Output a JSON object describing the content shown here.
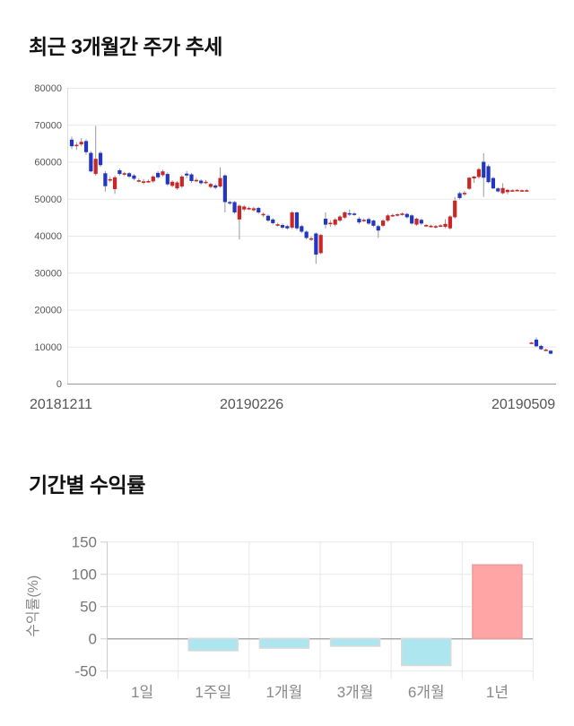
{
  "page": {
    "background": "#ffffff"
  },
  "price_section": {
    "title": "최근 3개월간 주가 추세",
    "x_axis_labels": [
      "20181211",
      "20190226",
      "20190509"
    ]
  },
  "returns_section": {
    "title": "기간별 수익률",
    "ylabel": "수익률(%)"
  },
  "chart_data": [
    {
      "type": "candlestick",
      "title": "최근 3개월간 주가 추세",
      "x_axis_labels": [
        "20181211",
        "20190226",
        "20190509"
      ],
      "y_ticks": [
        0,
        10000,
        20000,
        30000,
        40000,
        50000,
        60000,
        70000,
        80000
      ],
      "ylim": [
        0,
        80000
      ],
      "grid": true,
      "legend": "none",
      "colors": {
        "up": "#cc2525",
        "down": "#2236c4",
        "wick": "#999999",
        "grid": "#e8e8e8",
        "axis_line": "#999999",
        "side_axis": "#dddddd",
        "tick_text": "#555555"
      },
      "candles_ohlc": [
        [
          66000,
          66800,
          63500,
          64200
        ],
        [
          64300,
          65300,
          63200,
          64600
        ],
        [
          64700,
          66400,
          64200,
          65400
        ],
        [
          65600,
          66100,
          61900,
          62600
        ],
        [
          62400,
          62900,
          57100,
          57400
        ],
        [
          56700,
          69700,
          56200,
          60800
        ],
        [
          62400,
          62900,
          58600,
          59100
        ],
        [
          56900,
          57500,
          51900,
          53400
        ],
        [
          55100,
          55900,
          54400,
          55300
        ],
        [
          52600,
          56300,
          51300,
          55800
        ],
        [
          57700,
          58200,
          56300,
          56700
        ],
        [
          56500,
          57300,
          56100,
          56900
        ],
        [
          56900,
          57200,
          55600,
          56000
        ],
        [
          56300,
          56700,
          55000,
          55400
        ],
        [
          54900,
          55500,
          54400,
          55000
        ],
        [
          54500,
          55300,
          53900,
          54700
        ],
        [
          54700,
          55200,
          54300,
          54800
        ],
        [
          54700,
          56400,
          54300,
          56000
        ],
        [
          57000,
          57500,
          55400,
          55800
        ],
        [
          56400,
          57800,
          56000,
          57400
        ],
        [
          56700,
          57100,
          53500,
          53900
        ],
        [
          53500,
          55000,
          53100,
          54600
        ],
        [
          52800,
          54800,
          52400,
          54400
        ],
        [
          53300,
          56400,
          52900,
          56000
        ],
        [
          56800,
          57500,
          55600,
          56300
        ],
        [
          56600,
          57000,
          54300,
          54800
        ],
        [
          54900,
          55600,
          54500,
          55100
        ],
        [
          54900,
          55300,
          53800,
          54200
        ],
        [
          54500,
          55100,
          54000,
          54600
        ],
        [
          53200,
          54400,
          52800,
          54000
        ],
        [
          53600,
          54000,
          52600,
          53000
        ],
        [
          53300,
          58500,
          53000,
          55600
        ],
        [
          56300,
          56600,
          46300,
          49100
        ],
        [
          49100,
          49500,
          48300,
          48900
        ],
        [
          49100,
          49400,
          45900,
          46300
        ],
        [
          44400,
          48500,
          39000,
          48100
        ],
        [
          47100,
          48300,
          46600,
          47900
        ],
        [
          47300,
          47900,
          46900,
          47500
        ],
        [
          46900,
          47800,
          46500,
          47400
        ],
        [
          47500,
          47800,
          45900,
          46300
        ],
        [
          45600,
          46300,
          45000,
          45900
        ],
        [
          45400,
          45800,
          43700,
          44100
        ],
        [
          44400,
          44800,
          43000,
          43400
        ],
        [
          42900,
          43500,
          42500,
          43100
        ],
        [
          42900,
          43300,
          41800,
          42200
        ],
        [
          42600,
          43000,
          41600,
          42000
        ],
        [
          42200,
          46700,
          41800,
          46300
        ],
        [
          46300,
          46600,
          41500,
          42000
        ],
        [
          42600,
          43000,
          40700,
          41100
        ],
        [
          41100,
          41500,
          39000,
          39400
        ],
        [
          39100,
          39800,
          38600,
          39300
        ],
        [
          40600,
          40900,
          32400,
          34900
        ],
        [
          35300,
          40500,
          35000,
          40200
        ],
        [
          44600,
          46300,
          42000,
          43000
        ],
        [
          43200,
          44200,
          42400,
          43500
        ],
        [
          43000,
          44800,
          42600,
          44400
        ],
        [
          44100,
          45600,
          43700,
          45200
        ],
        [
          44900,
          46600,
          44500,
          46300
        ],
        [
          46100,
          47100,
          45300,
          45900
        ],
        [
          46000,
          46400,
          45400,
          45900
        ],
        [
          44600,
          45100,
          43200,
          43600
        ],
        [
          44100,
          44700,
          43700,
          44300
        ],
        [
          44500,
          44900,
          42900,
          43300
        ],
        [
          44100,
          44400,
          42300,
          42700
        ],
        [
          42600,
          43000,
          39400,
          41400
        ],
        [
          42700,
          44500,
          42300,
          44100
        ],
        [
          44100,
          45900,
          43700,
          45500
        ],
        [
          45500,
          46000,
          45100,
          45600
        ],
        [
          45700,
          46100,
          45200,
          45800
        ],
        [
          45900,
          46300,
          45400,
          46000
        ],
        [
          45900,
          46200,
          44600,
          45000
        ],
        [
          45500,
          45800,
          43000,
          43300
        ],
        [
          43000,
          44900,
          42700,
          44600
        ],
        [
          44300,
          44700,
          42900,
          43300
        ],
        [
          42800,
          43200,
          42400,
          42900
        ],
        [
          42600,
          43000,
          42200,
          42700
        ],
        [
          42400,
          42900,
          42000,
          42600
        ],
        [
          42700,
          43100,
          42300,
          42800
        ],
        [
          42400,
          44500,
          42000,
          43200
        ],
        [
          42000,
          45600,
          41600,
          45200
        ],
        [
          45000,
          50500,
          44600,
          49500
        ],
        [
          51500,
          51900,
          49800,
          50200
        ],
        [
          51300,
          52100,
          50800,
          51600
        ],
        [
          52700,
          55900,
          52400,
          55700
        ],
        [
          55500,
          56200,
          54300,
          56000
        ],
        [
          55900,
          58400,
          55500,
          58000
        ],
        [
          60000,
          62300,
          50500,
          55700
        ],
        [
          58800,
          59300,
          54200,
          54500
        ],
        [
          55600,
          55900,
          52600,
          52800
        ],
        [
          52800,
          53100,
          51700,
          52000
        ],
        [
          51500,
          54200,
          51200,
          52900
        ],
        [
          51800,
          52700,
          51200,
          52400
        ],
        [
          52300,
          52600,
          52000,
          52300
        ],
        [
          52300,
          52600,
          52000,
          52400
        ],
        [
          52200,
          52500,
          51900,
          52300
        ],
        [
          52300,
          52600,
          52000,
          52300
        ],
        [
          11000,
          11300,
          10800,
          11100
        ],
        [
          11900,
          12500,
          9900,
          10100
        ],
        [
          10200,
          10500,
          9100,
          9300
        ],
        [
          9200,
          9500,
          8900,
          9200
        ],
        [
          8900,
          9100,
          7900,
          8100
        ]
      ]
    },
    {
      "type": "bar",
      "title": "기간별 수익률",
      "ylabel": "수익률(%)",
      "categories": [
        "1일",
        "1주일",
        "1개월",
        "3개월",
        "6개월",
        "1년"
      ],
      "values": [
        0,
        -19,
        -15,
        -12,
        -42,
        114
      ],
      "y_ticks": [
        -50,
        0,
        50,
        100,
        150
      ],
      "ylim": [
        -50,
        150
      ],
      "grid": true,
      "legend": "none",
      "colors": {
        "positive": "#ffa5a5",
        "positive_border": "#ef9a9a",
        "negative": "#aee6f0",
        "negative_border": "#d9d9d9",
        "grid": "#e8e8e8",
        "zero_line": "#aaaaaa",
        "axis_line": "#cccccc",
        "tick_text": "#777777",
        "label_text": "#888888"
      }
    }
  ]
}
